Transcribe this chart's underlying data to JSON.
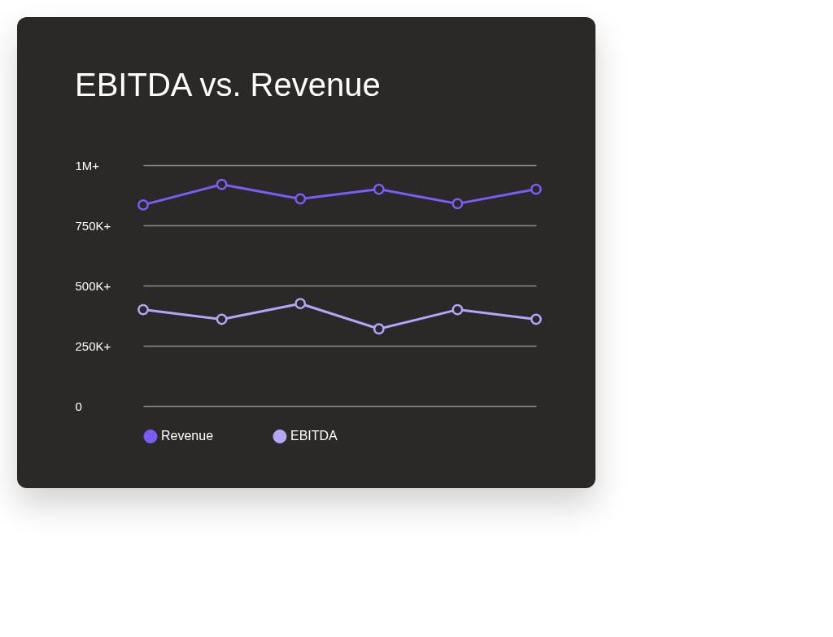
{
  "chart_data": {
    "type": "line",
    "title": "EBITDA vs. Revenue",
    "categories": [
      null,
      null,
      null,
      null,
      null,
      null
    ],
    "series": [
      {
        "name": "Revenue",
        "color": "#7b5cf5",
        "values": [
          835000,
          920000,
          860000,
          900000,
          840000,
          900000
        ]
      },
      {
        "name": "EBITDA",
        "color": "#b3a6f7",
        "values": [
          400000,
          360000,
          425000,
          320000,
          400000,
          360000
        ]
      }
    ],
    "ylim": [
      0,
      1000000
    ],
    "yticks": [
      0,
      {
        "value": 250000,
        "label": "250K+"
      },
      {
        "value": 500000,
        "label": "500K+"
      },
      {
        "value": 750000,
        "label": "750K+"
      },
      {
        "value": 1000000,
        "label": "1M+"
      }
    ],
    "grid": "y",
    "legend": "bottom",
    "marker": "circle",
    "line_style": "solid"
  }
}
